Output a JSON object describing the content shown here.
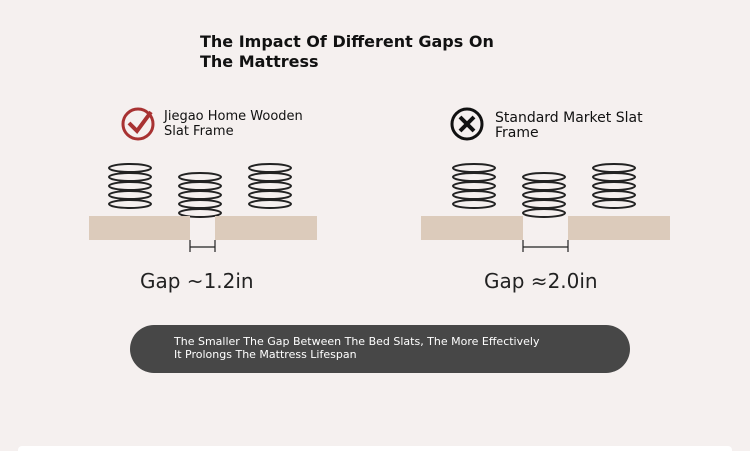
{
  "title": "The Impact Of Different Gaps On The Mattress",
  "panels": [
    {
      "label": "Jiegao Home Wooden Slat Frame",
      "gap": "Gap ~1.2in"
    },
    {
      "label": "Standard Market Slat Frame",
      "gap": "Gap ≈2.0in"
    }
  ],
  "note": "The Smaller The Gap Between The Bed Slats, The More Effectively It Prolongs The Mattress Lifespan"
}
